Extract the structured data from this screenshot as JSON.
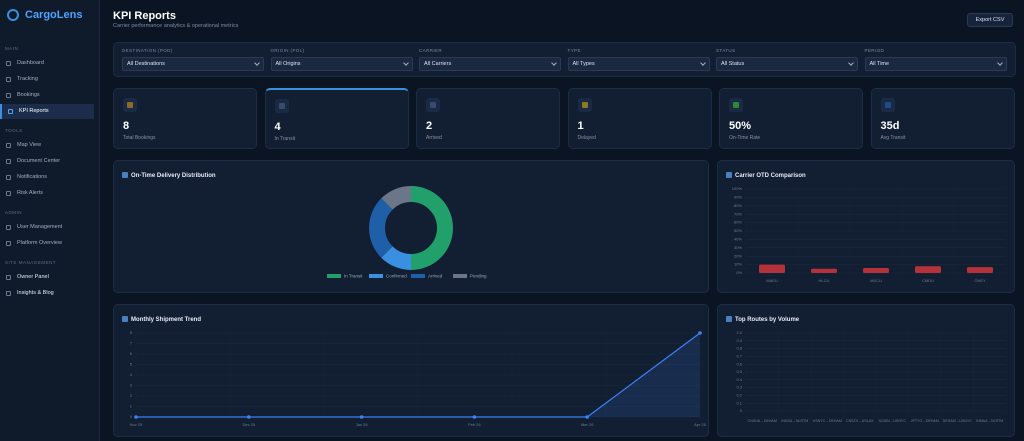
{
  "sidebar": {
    "brand": "CargoLens",
    "sections": [
      {
        "title": "MAIN",
        "items": [
          {
            "label": "Dashboard"
          },
          {
            "label": "Tracking"
          },
          {
            "label": "Bookings"
          },
          {
            "label": "KPI Reports",
            "active": true
          }
        ]
      },
      {
        "title": "TOOLS",
        "items": [
          {
            "label": "Map View"
          },
          {
            "label": "Document Center"
          },
          {
            "label": "Notifications"
          },
          {
            "label": "Risk Alerts"
          }
        ]
      },
      {
        "title": "ADMIN",
        "items": [
          {
            "label": "User Management"
          },
          {
            "label": "Platform Overview"
          }
        ]
      },
      {
        "title": "SITE MANAGEMENT",
        "items": [
          {
            "label": "Owner Panel"
          },
          {
            "label": "Insights & Blog"
          }
        ]
      }
    ]
  },
  "header": {
    "title": "KPI Reports",
    "subtitle": "Carrier performance analytics & operational metrics",
    "export": "Export CSV"
  },
  "filters": [
    {
      "label": "DESTINATION (POD)",
      "value": "All Destinations"
    },
    {
      "label": "ORIGIN (POL)",
      "value": "All Origins"
    },
    {
      "label": "CARRIER",
      "value": "All Carriers"
    },
    {
      "label": "TYPE",
      "value": "All Types"
    },
    {
      "label": "STATUS",
      "value": "All Status"
    },
    {
      "label": "PERIOD",
      "value": "All Time"
    }
  ],
  "kpis": [
    {
      "value": "8",
      "label": "Total Bookings",
      "color": "#8a6a2a"
    },
    {
      "value": "4",
      "label": "In Transit",
      "color": "#3a4a6a"
    },
    {
      "value": "2",
      "label": "Arrived",
      "color": "#3a4a6a"
    },
    {
      "value": "1",
      "label": "Delayed",
      "color": "#8a7a20"
    },
    {
      "value": "50%",
      "label": "On-Time Rate",
      "color": "#2a8a3a"
    },
    {
      "value": "35d",
      "label": "Avg Transit",
      "color": "#1f4a8a"
    }
  ],
  "chart_data": [
    {
      "type": "donut",
      "title": "On-Time Delivery Distribution",
      "categories": [
        "In Transit",
        "Confirmed",
        "Arrived",
        "Pending"
      ],
      "values": [
        4,
        1,
        2,
        1
      ],
      "colors": [
        "#22a06b",
        "#3b8fe0",
        "#1f5fa8",
        "#6b7689"
      ]
    },
    {
      "type": "bar",
      "title": "Carrier OTD Comparison",
      "categories": [
        "MAEU",
        "HLCU",
        "MSCU",
        "CMDU",
        "ONEY"
      ],
      "values": [
        10,
        5,
        6,
        8,
        7
      ],
      "color": "#b5323a",
      "ylim": [
        0,
        100
      ],
      "yticks": [
        {
          "value": 0,
          "label": "0%"
        },
        {
          "value": 10,
          "label": "10%"
        },
        {
          "value": 20,
          "label": "20%"
        },
        {
          "value": 30,
          "label": "30%"
        },
        {
          "value": 40,
          "label": "40%"
        },
        {
          "value": 50,
          "label": "50%"
        },
        {
          "value": 60,
          "label": "60%"
        },
        {
          "value": 70,
          "label": "70%"
        },
        {
          "value": 80,
          "label": "80%"
        },
        {
          "value": 90,
          "label": "90%"
        },
        {
          "value": 100,
          "label": "100%"
        }
      ],
      "grid": true
    },
    {
      "type": "line",
      "title": "Monthly Shipment Trend",
      "categories": [
        "Nov 25",
        "Dec 25",
        "Jan 26",
        "Feb 26",
        "Mar 26",
        "Apr 26"
      ],
      "values": [
        0,
        0,
        0,
        0,
        0,
        8
      ],
      "color": "#3b82f6",
      "ylim": [
        0,
        8
      ],
      "yticks": [
        0,
        1,
        2,
        3,
        4,
        5,
        6,
        7,
        8
      ],
      "grid": true
    },
    {
      "type": "bar",
      "title": "Top Routes by Volume",
      "categories": [
        "CNSHA→DEHAM",
        "INNSA→NLRTM",
        "USNYC→DEHAM",
        "CNSZX→USLAX",
        "SGSIN→USNYC",
        "JPTYO→DEHAM",
        "DEHAM→USNYC",
        "INMAA→NLRTM"
      ],
      "values": [
        0,
        0,
        0,
        0,
        0,
        0,
        0,
        0
      ],
      "color": "#3b82f6",
      "ylim": [
        0,
        1
      ],
      "yticks": [
        0,
        0.1,
        0.2,
        0.3,
        0.4,
        0.5,
        0.6,
        0.7,
        0.8,
        0.9,
        {
          "value": 1,
          "label": "1.0"
        }
      ],
      "grid": true
    }
  ]
}
